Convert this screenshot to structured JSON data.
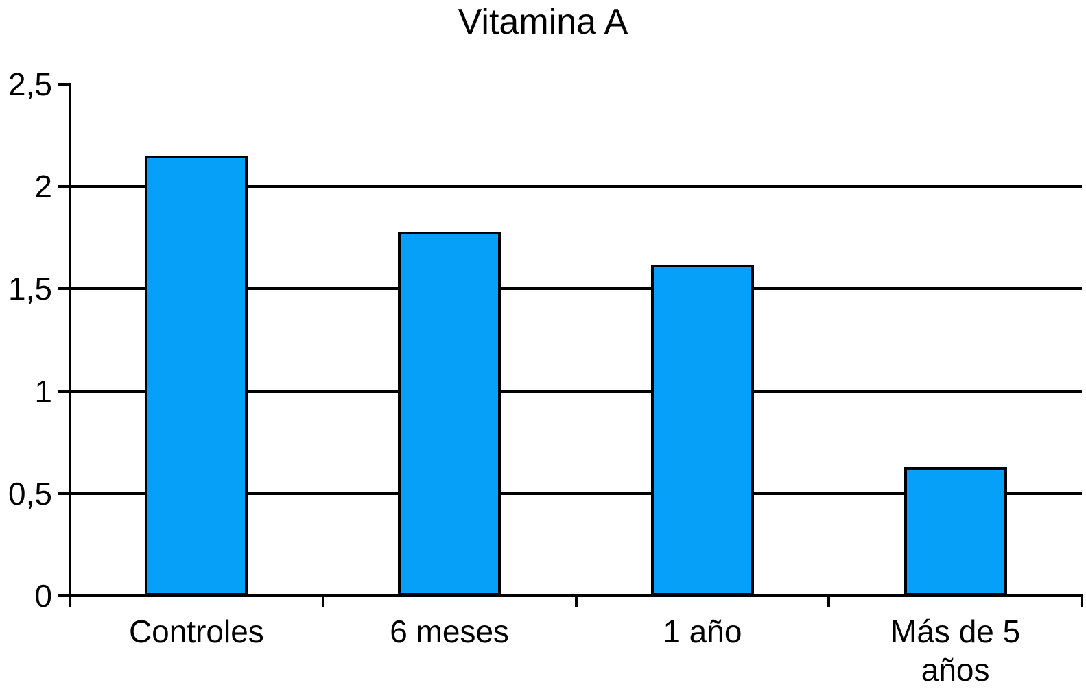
{
  "colors": {
    "background": "#FFFFFF",
    "bar_fill": "#06A0F9",
    "bar_border": "#000000",
    "axis": "#000000",
    "gridline": "#000000",
    "text": "#000000"
  },
  "chart_data": {
    "type": "bar",
    "title": "Vitamina A",
    "categories": [
      "Controles",
      "6 meses",
      "1 año",
      "Más de 5 años"
    ],
    "values": [
      2.15,
      1.78,
      1.62,
      0.63
    ],
    "xlabel": "",
    "ylabel": "",
    "ylim": [
      0,
      2.5
    ],
    "ytick_step": 0.5,
    "ytick_labels": [
      "0",
      "0,5",
      "1",
      "1,5",
      "2",
      "2,5"
    ],
    "gridline_values": [
      0.5,
      1,
      1.5,
      2
    ],
    "grid": "horizontal-only",
    "legend": "none"
  }
}
